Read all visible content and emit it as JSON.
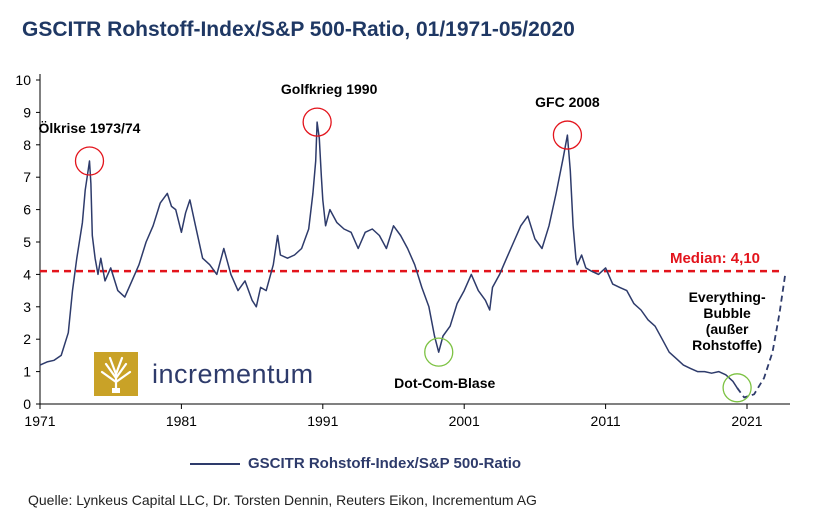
{
  "title": "GSCITR Rohstoff-Index/S&P 500-Ratio, 01/1971-05/2020",
  "legend_label": "GSCITR Rohstoff-Index/S&P 500-Ratio",
  "source": "Quelle: Lynkeus Capital LLC, Dr. Torsten Dennin, Reuters Eikon, Incrementum AG",
  "logo_text": "incrementum",
  "colors": {
    "line": "#2e3b6b",
    "median": "#e3141c",
    "peak_circle": "#e3141c",
    "low_circle": "#7cc242",
    "title": "#1f3864"
  },
  "chart_data": {
    "type": "line",
    "title": "GSCITR Rohstoff-Index/S&P 500-Ratio, 01/1971-05/2020",
    "xlabel": "",
    "ylabel": "",
    "xlim": [
      1971,
      2024
    ],
    "ylim": [
      0,
      10
    ],
    "xticks": [
      1971,
      1981,
      1991,
      2001,
      2011,
      2021
    ],
    "yticks": [
      0,
      1,
      2,
      3,
      4,
      5,
      6,
      7,
      8,
      9,
      10
    ],
    "median": {
      "value": 4.1,
      "label": "Median: 4,10"
    },
    "series": [
      {
        "name": "GSCITR Rohstoff-Index/S&P 500-Ratio",
        "x": [
          1971.0,
          1971.5,
          1972.0,
          1972.5,
          1973.0,
          1973.3,
          1973.6,
          1974.0,
          1974.2,
          1974.4,
          1974.5,
          1974.6,
          1974.7,
          1974.9,
          1975.1,
          1975.3,
          1975.6,
          1976.0,
          1976.5,
          1977.0,
          1977.5,
          1978.0,
          1978.5,
          1979.0,
          1979.5,
          1980.0,
          1980.3,
          1980.6,
          1981.0,
          1981.3,
          1981.6,
          1982.0,
          1982.5,
          1983.0,
          1983.5,
          1984.0,
          1984.5,
          1985.0,
          1985.5,
          1986.0,
          1986.3,
          1986.6,
          1987.0,
          1987.5,
          1987.8,
          1988.0,
          1988.5,
          1989.0,
          1989.5,
          1990.0,
          1990.3,
          1990.5,
          1990.6,
          1990.75,
          1990.9,
          1991.0,
          1991.2,
          1991.5,
          1992.0,
          1992.5,
          1993.0,
          1993.5,
          1994.0,
          1994.5,
          1995.0,
          1995.5,
          1996.0,
          1996.5,
          1997.0,
          1997.5,
          1998.0,
          1998.5,
          1998.9,
          1999.2,
          1999.5,
          2000.0,
          2000.5,
          2001.0,
          2001.5,
          2002.0,
          2002.5,
          2002.8,
          2003.0,
          2003.5,
          2004.0,
          2004.5,
          2005.0,
          2005.5,
          2006.0,
          2006.5,
          2007.0,
          2007.5,
          2008.0,
          2008.3,
          2008.5,
          2008.7,
          2008.9,
          2009.0,
          2009.3,
          2009.6,
          2010.0,
          2010.5,
          2011.0,
          2011.5,
          2012.0,
          2012.5,
          2013.0,
          2013.5,
          2014.0,
          2014.5,
          2015.0,
          2015.5,
          2016.0,
          2016.5,
          2017.0,
          2017.5,
          2018.0,
          2018.5,
          2019.0,
          2019.5,
          2020.0,
          2020.3
        ],
        "values": [
          1.2,
          1.3,
          1.35,
          1.5,
          2.2,
          3.5,
          4.5,
          5.6,
          6.6,
          7.2,
          7.5,
          6.8,
          5.2,
          4.5,
          4.0,
          4.5,
          3.8,
          4.2,
          3.5,
          3.3,
          3.8,
          4.3,
          5.0,
          5.5,
          6.2,
          6.5,
          6.1,
          6.0,
          5.3,
          5.9,
          6.3,
          5.5,
          4.5,
          4.3,
          4.0,
          4.8,
          4.0,
          3.5,
          3.8,
          3.2,
          3.0,
          3.6,
          3.5,
          4.3,
          5.2,
          4.6,
          4.5,
          4.6,
          4.8,
          5.4,
          6.5,
          7.5,
          8.7,
          8.2,
          7.0,
          6.3,
          5.5,
          6.0,
          5.6,
          5.4,
          5.3,
          4.8,
          5.3,
          5.4,
          5.2,
          4.8,
          5.5,
          5.2,
          4.8,
          4.3,
          3.6,
          3.0,
          2.1,
          1.6,
          2.1,
          2.4,
          3.1,
          3.5,
          4.0,
          3.5,
          3.2,
          2.9,
          3.6,
          4.0,
          4.5,
          5.0,
          5.5,
          5.8,
          5.1,
          4.8,
          5.5,
          6.5,
          7.6,
          8.3,
          7.2,
          5.5,
          4.5,
          4.3,
          4.6,
          4.2,
          4.1,
          4.0,
          4.2,
          3.7,
          3.6,
          3.5,
          3.1,
          2.9,
          2.6,
          2.4,
          2.0,
          1.6,
          1.4,
          1.2,
          1.1,
          1.0,
          1.0,
          0.95,
          1.0,
          0.9,
          0.7,
          0.5
        ]
      },
      {
        "name": "projection",
        "style": "dashed",
        "x": [
          2020.3,
          2020.8,
          2021.5,
          2022.2,
          2022.8,
          2023.3,
          2023.7
        ],
        "values": [
          0.5,
          0.2,
          0.3,
          0.8,
          1.6,
          2.8,
          4.0
        ]
      }
    ],
    "annotations": [
      {
        "label": "Ölkrise 1973/74",
        "x": 1974.5,
        "y": 7.5,
        "marker": "peak"
      },
      {
        "label": "Golfkrieg 1990",
        "x": 1990.6,
        "y": 8.7,
        "marker": "peak"
      },
      {
        "label": "GFC 2008",
        "x": 2008.3,
        "y": 8.3,
        "marker": "peak"
      },
      {
        "label": "Dot-Com-Blase",
        "x": 1999.2,
        "y": 1.6,
        "marker": "low"
      },
      {
        "label": "Everything-Bubble (außer Rohstoffe)",
        "x": 2020.3,
        "y": 0.5,
        "marker": "low"
      }
    ]
  }
}
